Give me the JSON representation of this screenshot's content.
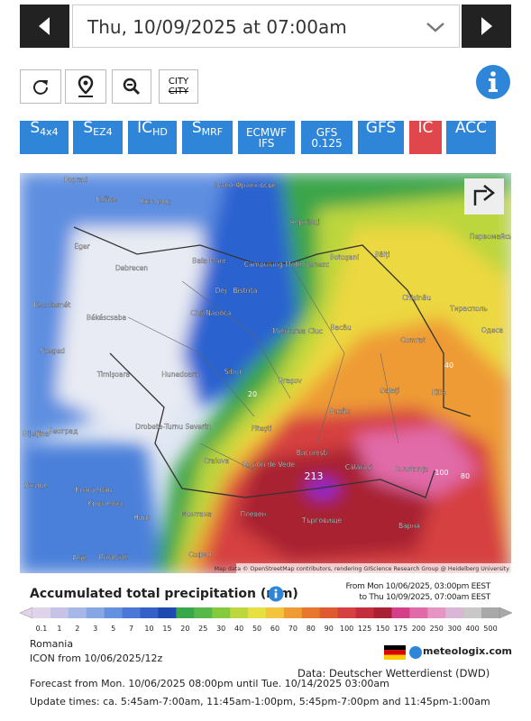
{
  "header": {
    "date": "Thu, 10/09/2025 at 07:00am"
  },
  "tools": {
    "city_top": "CITY",
    "city_bottom": "CITY"
  },
  "models": [
    {
      "main": "S",
      "sub": "4x4"
    },
    {
      "main": "S",
      "sub": "EZ4"
    },
    {
      "main": "IC",
      "sub": "HD"
    },
    {
      "main": "S",
      "sub": "MRF"
    },
    {
      "main": "ECMWF",
      "sub": "IFS"
    },
    {
      "main": "GFS",
      "sub": "0.125"
    },
    {
      "main": "GFS"
    },
    {
      "main": "IC",
      "active": true
    },
    {
      "main": "ACC"
    }
  ],
  "map": {
    "cities": [
      "Poprad",
      "Košice",
      "Ужгород",
      "Івано-Франківськ",
      "Чернівці",
      "Eger",
      "Debrecen",
      "Baia Mare",
      "Câmpulung Moldovenesc",
      "Botoșani",
      "Bălți",
      "Chișinău",
      "Тирасполь",
      "Одеса",
      "Первомайськ",
      "Kecskemét",
      "Békéscsaba",
      "Cluj-Napoca",
      "Dej",
      "Bistrița",
      "Miercurea Ciuc",
      "Bacău",
      "Comrat",
      "Szeged",
      "Timișoara",
      "Hunedoara",
      "Sibiu",
      "Brașov",
      "Galați",
      "Kilia",
      "Београд",
      "Drobeta-Turnu Severin",
      "Pitești",
      "Buzău",
      "Bijeljina",
      "Craiova",
      "Roșiori de Vede",
      "București",
      "Călărași",
      "Constanța",
      "Ужице",
      "Крагуевац",
      "Крушевац",
      "Монтана",
      "Плевен",
      "Търговище",
      "Ниш",
      "Варна",
      "София",
      "Pejë",
      "Prishtinë"
    ],
    "values": [
      "40",
      "80",
      "100",
      "20",
      "213"
    ],
    "attribution": "Map data © OpenStreetMap contributors, rendering GIScience Research Group @ Heidelberg University"
  },
  "legend": {
    "title": "Accumulated total precipitation (mm)",
    "from": "From Mon 10/06/2025, 03:00pm EEST",
    "to": "to Thu 10/09/2025, 07:00am EEST",
    "scale": [
      0.1,
      1,
      2,
      3,
      5,
      7,
      10,
      15,
      20,
      25,
      30,
      40,
      50,
      60,
      70,
      80,
      90,
      100,
      125,
      150,
      175,
      200,
      250,
      300,
      400,
      500
    ],
    "colors": [
      "#e0d4ea",
      "#c6c2e8",
      "#a7b8e8",
      "#86a6e4",
      "#6490e0",
      "#4b77d6",
      "#3460c8",
      "#1e49b0",
      "#37a84a",
      "#56b94a",
      "#86c83e",
      "#bcd63c",
      "#e8e040",
      "#f2c53c",
      "#ee9b34",
      "#e8772e",
      "#df5a30",
      "#d64040",
      "#c32d3d",
      "#a82033",
      "#d43f8a",
      "#e16aa8",
      "#e595c2",
      "#d9b6d6",
      "#c8c8c8",
      "#a8a8a8"
    ]
  },
  "footer": {
    "region": "Romania",
    "model": "ICON from 10/06/2025/12z",
    "brand": "meteologix.com",
    "source": "Data: Deutscher Wetterdienst (DWD)",
    "forecast": "Forecast from Mon. 10/06/2025 08:00pm until Tue. 10/14/2025 03:00am",
    "updates": "Update times: ca. 5:45am-7:00am, 11:45am-1:00pm, 5:45pm-7:00pm and 11:45pm-1:00am"
  }
}
